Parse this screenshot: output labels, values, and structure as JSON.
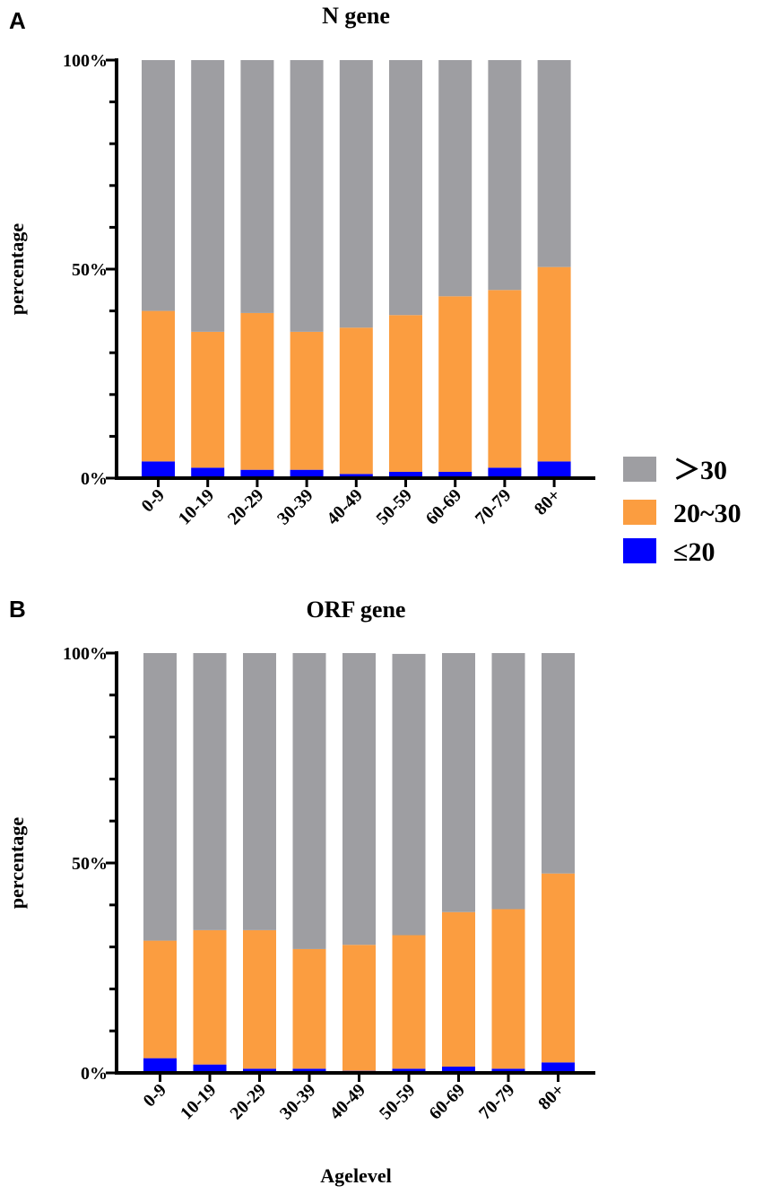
{
  "figure": {
    "x_axis_title": "Agelevel",
    "legend": [
      {
        "label": "＞30",
        "color": "#9e9ea2",
        "series": ">30"
      },
      {
        "label": "20~30",
        "color": "#fb9d40",
        "series": "20~30"
      },
      {
        "label": "≤20",
        "color": "#0000ff",
        "series": "<=20"
      }
    ]
  },
  "chart_data": [
    {
      "panel": "A",
      "type": "bar",
      "stacked": true,
      "title": "N gene",
      "xlabel": "",
      "ylabel": "percentage",
      "ylim": [
        0,
        100
      ],
      "yticks": [
        0,
        50,
        100
      ],
      "ytick_labels": [
        "0%",
        "50%",
        "100%"
      ],
      "categories": [
        "0-9",
        "10-19",
        "20-29",
        "30-39",
        "40-49",
        "50-59",
        "60-69",
        "70-79",
        "80+"
      ],
      "series": [
        {
          "name": "≤20",
          "color": "#0000ff",
          "values": [
            4,
            2.5,
            2,
            2,
            1,
            1.5,
            1.5,
            2.5,
            4
          ]
        },
        {
          "name": "20~30",
          "color": "#fb9d40",
          "values": [
            36,
            32.5,
            37.5,
            33,
            35,
            37.5,
            42,
            42.5,
            46.5
          ]
        },
        {
          "name": "＞30",
          "color": "#9e9ea2",
          "values": [
            60,
            65,
            60.5,
            65,
            64,
            61,
            56.5,
            55,
            49.5
          ]
        }
      ]
    },
    {
      "panel": "B",
      "type": "bar",
      "stacked": true,
      "title": "ORF gene",
      "xlabel": "Agelevel",
      "ylabel": "percentage",
      "ylim": [
        0,
        100
      ],
      "yticks": [
        0,
        50,
        100
      ],
      "ytick_labels": [
        "0%",
        "50%",
        "100%"
      ],
      "categories": [
        "0-9",
        "10-19",
        "20-29",
        "30-39",
        "40-49",
        "50-59",
        "60-69",
        "70-79",
        "80+"
      ],
      "series": [
        {
          "name": "≤20",
          "color": "#0000ff",
          "values": [
            3.5,
            2,
            1,
            1,
            0.5,
            1,
            1.5,
            1,
            2.5
          ]
        },
        {
          "name": "20~30",
          "color": "#fb9d40",
          "values": [
            28,
            32,
            33,
            28.5,
            30,
            31.8,
            36.8,
            38,
            45
          ]
        },
        {
          "name": "＞30",
          "color": "#9e9ea2",
          "values": [
            68.5,
            66,
            66,
            70.5,
            69.5,
            67,
            61.7,
            61,
            52.5
          ]
        }
      ]
    }
  ]
}
